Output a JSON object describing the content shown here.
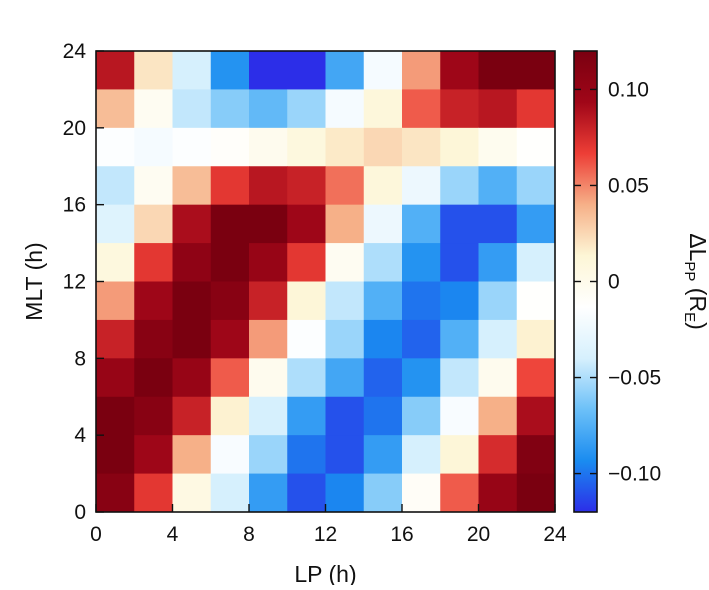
{
  "chart_data": {
    "type": "heatmap",
    "xlabel": "LP (h)",
    "ylabel": "MLT (h)",
    "colorbar_label": "ΔL",
    "colorbar_label_sub": "PP",
    "colorbar_unit": " (R",
    "colorbar_unit_sub": "E",
    "colorbar_unit_close": ")",
    "xlim": [
      0,
      24
    ],
    "ylim": [
      0,
      24
    ],
    "xticks": [
      0,
      4,
      8,
      12,
      16,
      20,
      24
    ],
    "yticks": [
      0,
      4,
      8,
      12,
      16,
      20,
      24
    ],
    "clim": [
      -0.12,
      0.12
    ],
    "colorbar_ticks": [
      {
        "value": 0.1,
        "label": "0.10"
      },
      {
        "value": 0.05,
        "label": "0.05"
      },
      {
        "value": 0.0,
        "label": "0"
      },
      {
        "value": -0.05,
        "label": "−0.05"
      },
      {
        "value": -0.1,
        "label": "−0.10"
      }
    ],
    "colormap": [
      "#2c2ee8",
      "#1a8cf0",
      "#6cc0f8",
      "#d6f0fd",
      "#ffffff",
      "#fdf6d6",
      "#f6b088",
      "#ed3e36",
      "#a00618",
      "#7a0010"
    ],
    "cell_size": 2,
    "rows_top_to_bottom": [
      [
        0.085,
        0.02,
        -0.04,
        -0.09,
        -0.12,
        -0.12,
        -0.08,
        -0.02,
        0.045,
        0.095,
        0.125,
        0.125
      ],
      [
        0.035,
        -0.005,
        -0.045,
        -0.06,
        -0.07,
        -0.055,
        -0.02,
        0.01,
        0.06,
        0.08,
        0.085,
        0.07
      ],
      [
        -0.015,
        -0.02,
        -0.015,
        -0.01,
        -0.002,
        0.008,
        0.018,
        0.025,
        0.02,
        0.012,
        -0.003,
        -0.012
      ],
      [
        -0.045,
        -0.005,
        0.035,
        0.07,
        0.085,
        0.08,
        0.055,
        0.01,
        -0.025,
        -0.055,
        -0.075,
        -0.055
      ],
      [
        -0.035,
        0.025,
        0.09,
        0.12,
        0.12,
        0.095,
        0.04,
        -0.025,
        -0.075,
        -0.11,
        -0.11,
        -0.085
      ],
      [
        0.008,
        0.07,
        0.105,
        0.12,
        0.1,
        0.07,
        -0.005,
        -0.05,
        -0.09,
        -0.11,
        -0.085,
        -0.04
      ],
      [
        0.045,
        0.095,
        0.12,
        0.11,
        0.08,
        0.012,
        -0.045,
        -0.075,
        -0.1,
        -0.095,
        -0.055,
        -0.012
      ],
      [
        0.08,
        0.11,
        0.12,
        0.095,
        0.045,
        -0.015,
        -0.055,
        -0.095,
        -0.105,
        -0.075,
        -0.04,
        0.015
      ],
      [
        0.1,
        0.12,
        0.1,
        0.06,
        -0.002,
        -0.05,
        -0.08,
        -0.105,
        -0.09,
        -0.045,
        -0.002,
        0.065
      ],
      [
        0.125,
        0.11,
        0.08,
        0.015,
        -0.04,
        -0.085,
        -0.11,
        -0.1,
        -0.06,
        -0.018,
        0.04,
        0.09
      ],
      [
        0.125,
        0.095,
        0.04,
        -0.018,
        -0.055,
        -0.1,
        -0.11,
        -0.085,
        -0.04,
        0.012,
        0.075,
        0.115
      ],
      [
        0.11,
        0.07,
        0.005,
        -0.04,
        -0.085,
        -0.11,
        -0.095,
        -0.06,
        -0.008,
        0.06,
        0.1,
        0.125
      ]
    ]
  }
}
